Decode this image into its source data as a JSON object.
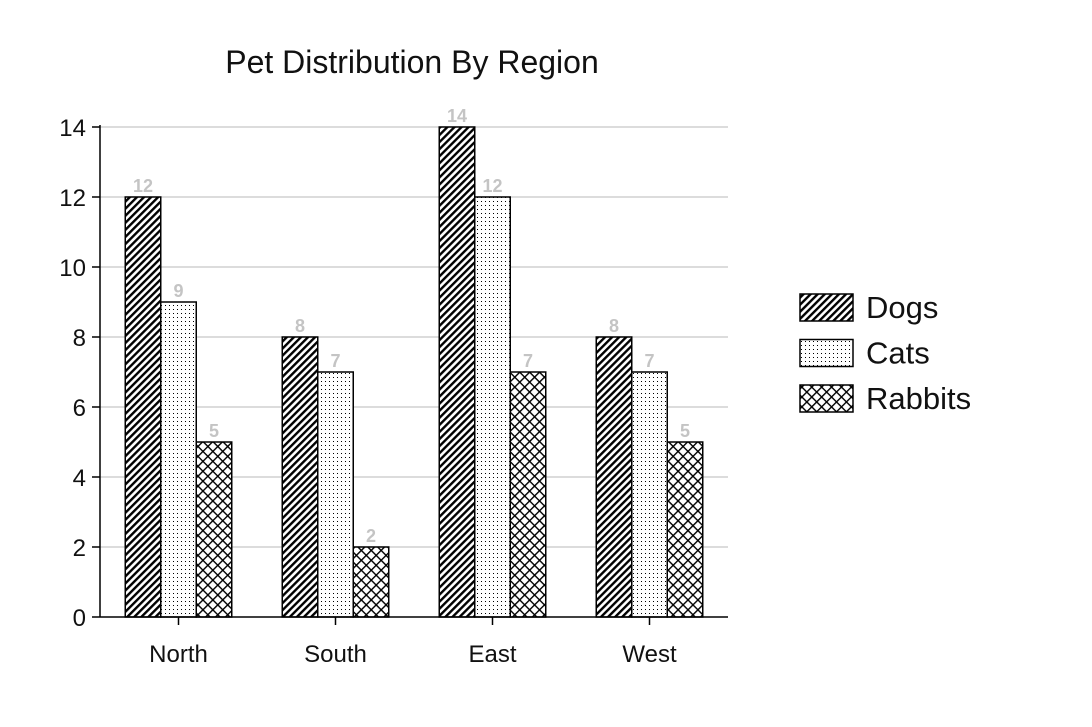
{
  "chart_data": {
    "type": "bar",
    "title": "Pet Distribution By Region",
    "xlabel": "",
    "ylabel": "",
    "categories": [
      "North",
      "South",
      "East",
      "West"
    ],
    "series": [
      {
        "name": "Dogs",
        "values": [
          12,
          8,
          14,
          8
        ],
        "pattern": "diagonal-hatch"
      },
      {
        "name": "Cats",
        "values": [
          9,
          7,
          12,
          7
        ],
        "pattern": "dots"
      },
      {
        "name": "Rabbits",
        "values": [
          5,
          2,
          7,
          5
        ],
        "pattern": "crosshatch"
      }
    ],
    "ylim": [
      0,
      14
    ],
    "yticks": [
      0,
      2,
      4,
      6,
      8,
      10,
      12,
      14
    ],
    "grid": true,
    "legend_position": "right",
    "data_labels": true,
    "colors": {
      "bar_stroke": "#000000",
      "grid": "#d0d0d0",
      "data_label": "#c4c4c4"
    }
  }
}
